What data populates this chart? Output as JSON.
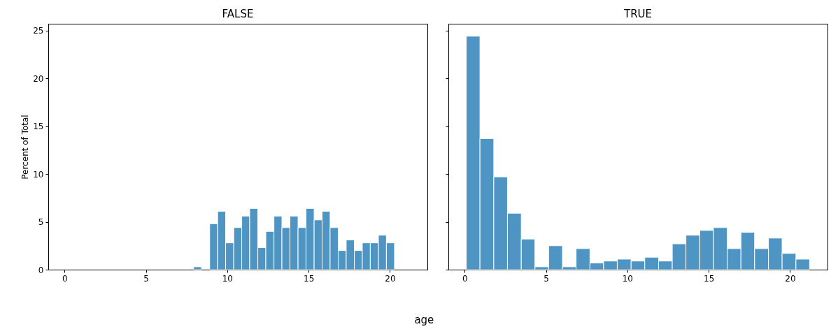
{
  "chart_data": [
    {
      "type": "histogram",
      "title": "FALSE",
      "ylabel": "Percent of Total",
      "xlabel": "age",
      "color": "#4f95c4",
      "grid": false,
      "bins": [
        7.93,
        8.42,
        8.92,
        9.41,
        9.9,
        10.4,
        10.89,
        11.38,
        11.88,
        12.37,
        12.87,
        13.36,
        13.85,
        14.35,
        14.84,
        15.34,
        15.83,
        16.32,
        16.82,
        17.31,
        17.81,
        18.3,
        18.79,
        19.29,
        19.78,
        20.28
      ],
      "values": [
        0.3,
        0,
        4.8,
        6.1,
        2.8,
        4.4,
        5.6,
        6.4,
        2.3,
        4.0,
        5.6,
        4.4,
        5.6,
        4.4,
        6.4,
        5.2,
        6.1,
        4.4,
        2.0,
        3.1,
        2.0,
        2.8,
        2.8,
        3.6,
        2.8
      ],
      "xlim": [
        -1,
        22.3
      ],
      "xticks": [
        0,
        5,
        10,
        15,
        20
      ],
      "ylim": [
        0,
        25.7
      ],
      "yticks": [
        0,
        5,
        10,
        15,
        20,
        25
      ]
    },
    {
      "type": "histogram",
      "title": "TRUE",
      "color": "#4f95c4",
      "grid": false,
      "tick_labels": "x",
      "bins": [
        0.1,
        0.94,
        1.79,
        2.63,
        3.48,
        4.32,
        5.16,
        6.01,
        6.85,
        7.7,
        8.54,
        9.38,
        10.23,
        11.07,
        11.92,
        12.76,
        13.6,
        14.45,
        15.29,
        16.14,
        16.98,
        17.82,
        18.67,
        19.51,
        20.36,
        21.2
      ],
      "values": [
        24.4,
        13.7,
        9.7,
        5.9,
        3.2,
        0.3,
        2.5,
        0.3,
        2.2,
        0.7,
        0.9,
        1.1,
        0.9,
        1.3,
        0.9,
        2.7,
        3.6,
        4.1,
        4.4,
        2.2,
        3.9,
        2.2,
        3.3,
        1.7,
        1.1
      ],
      "xlim": [
        -1,
        22.3
      ],
      "xticks": [
        0,
        5,
        10,
        15,
        20
      ],
      "ylim": [
        0,
        25.7
      ],
      "yticks": [
        0,
        5,
        10,
        15,
        20,
        25
      ]
    }
  ]
}
